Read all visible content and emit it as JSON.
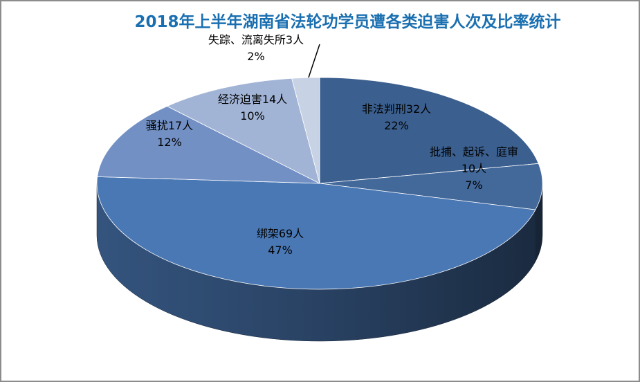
{
  "chart_data": {
    "type": "pie3d",
    "title": "2018年上半年湖南省法轮功学员遭各类迫害人次及比率统计",
    "categories": [
      "非法判刑32人",
      "批捕、起诉、庭审10人",
      "绑架69人",
      "骚扰17人",
      "经济迫害14人",
      "失踪、流离失所3人"
    ],
    "values": [
      22,
      7,
      47,
      12,
      10,
      2
    ],
    "value_labels": [
      "22%",
      "7%",
      "47%",
      "12%",
      "10%",
      "2%"
    ],
    "colors": [
      "#3b5f8e",
      "#43689a",
      "#4a78b4",
      "#7290c4",
      "#a2b4d6",
      "#c8d2e5"
    ]
  }
}
